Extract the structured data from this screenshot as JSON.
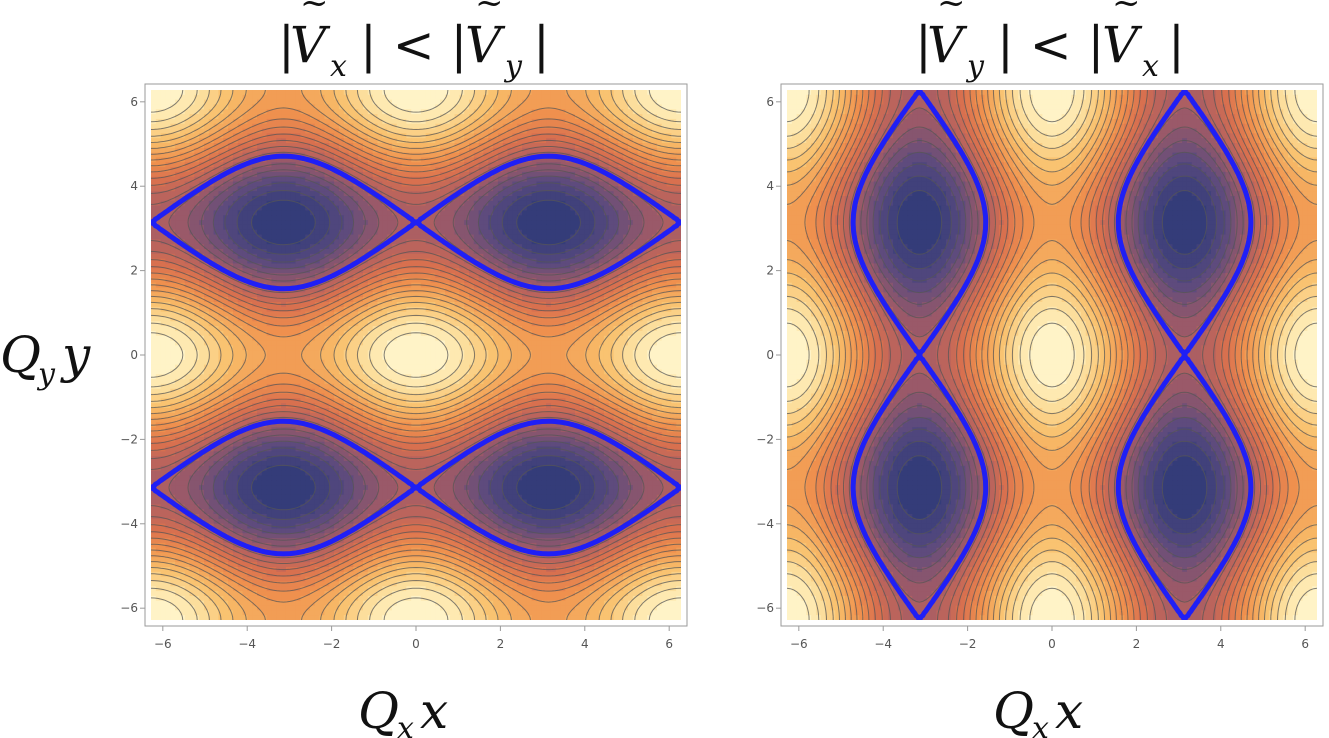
{
  "chart_data": [
    {
      "type": "contour",
      "title": {
        "pre": "|",
        "ante": "|",
        "v1": "V",
        "s1": "x",
        "mid": "| < |",
        "v2": "V",
        "s2": "y",
        "post": "|"
      },
      "xlabel": {
        "q": "Q",
        "qs": "x",
        "v": "x"
      },
      "ylabel": {
        "q": "Q",
        "qs": "y",
        "v": "y"
      },
      "xlim": [
        -6.28,
        6.28
      ],
      "ylim": [
        -6.28,
        6.28
      ],
      "xticks": [
        -6,
        -4,
        -2,
        0,
        2,
        4,
        6
      ],
      "yticks": [
        -6,
        -4,
        -2,
        0,
        2,
        4,
        6
      ],
      "field": "cos(x) + 2*cos(y)",
      "minima": [
        [
          -3.14,
          3.14
        ],
        [
          3.14,
          3.14
        ],
        [
          -3.14,
          -3.14
        ],
        [
          3.14,
          -3.14
        ]
      ],
      "maxima": [
        [
          0,
          0
        ],
        [
          -6.28,
          0
        ],
        [
          6.28,
          0
        ],
        [
          0,
          -6.28
        ],
        [
          0,
          6.28
        ],
        [
          -6.28,
          6.28
        ],
        [
          6.28,
          6.28
        ],
        [
          -6.28,
          -6.28
        ],
        [
          6.28,
          -6.28
        ]
      ],
      "highlight_level": -1.0,
      "highlight_color": "#1f1ff5"
    },
    {
      "type": "contour",
      "title": {
        "pre": "|",
        "ante": "|",
        "v1": "V",
        "s1": "y",
        "mid": "| < |",
        "v2": "V",
        "s2": "x",
        "post": "|"
      },
      "xlabel": {
        "q": "Q",
        "qs": "x",
        "v": "x"
      },
      "xlim": [
        -6.28,
        6.28
      ],
      "ylim": [
        -6.28,
        6.28
      ],
      "xticks": [
        -6,
        -4,
        -2,
        0,
        2,
        4,
        6
      ],
      "yticks": [
        -6,
        -4,
        -2,
        0,
        2,
        4,
        6
      ],
      "field": "2*cos(x) + cos(y)",
      "minima": [
        [
          -3.14,
          3.14
        ],
        [
          3.14,
          3.14
        ],
        [
          -3.14,
          -3.14
        ],
        [
          3.14,
          -3.14
        ]
      ],
      "maxima": [
        [
          0,
          0
        ],
        [
          -6.28,
          0
        ],
        [
          6.28,
          0
        ],
        [
          0,
          -6.28
        ],
        [
          0,
          6.28
        ],
        [
          -6.28,
          6.28
        ],
        [
          6.28,
          6.28
        ],
        [
          -6.28,
          -6.28
        ],
        [
          6.28,
          -6.28
        ]
      ],
      "highlight_level": -1.0,
      "highlight_color": "#1f1ff5"
    }
  ],
  "colors": {
    "high": "#fff8d2",
    "mid": "#f0924e",
    "low": "#2d3a78",
    "contour": "#555555",
    "frame": "#9a9a9a"
  }
}
